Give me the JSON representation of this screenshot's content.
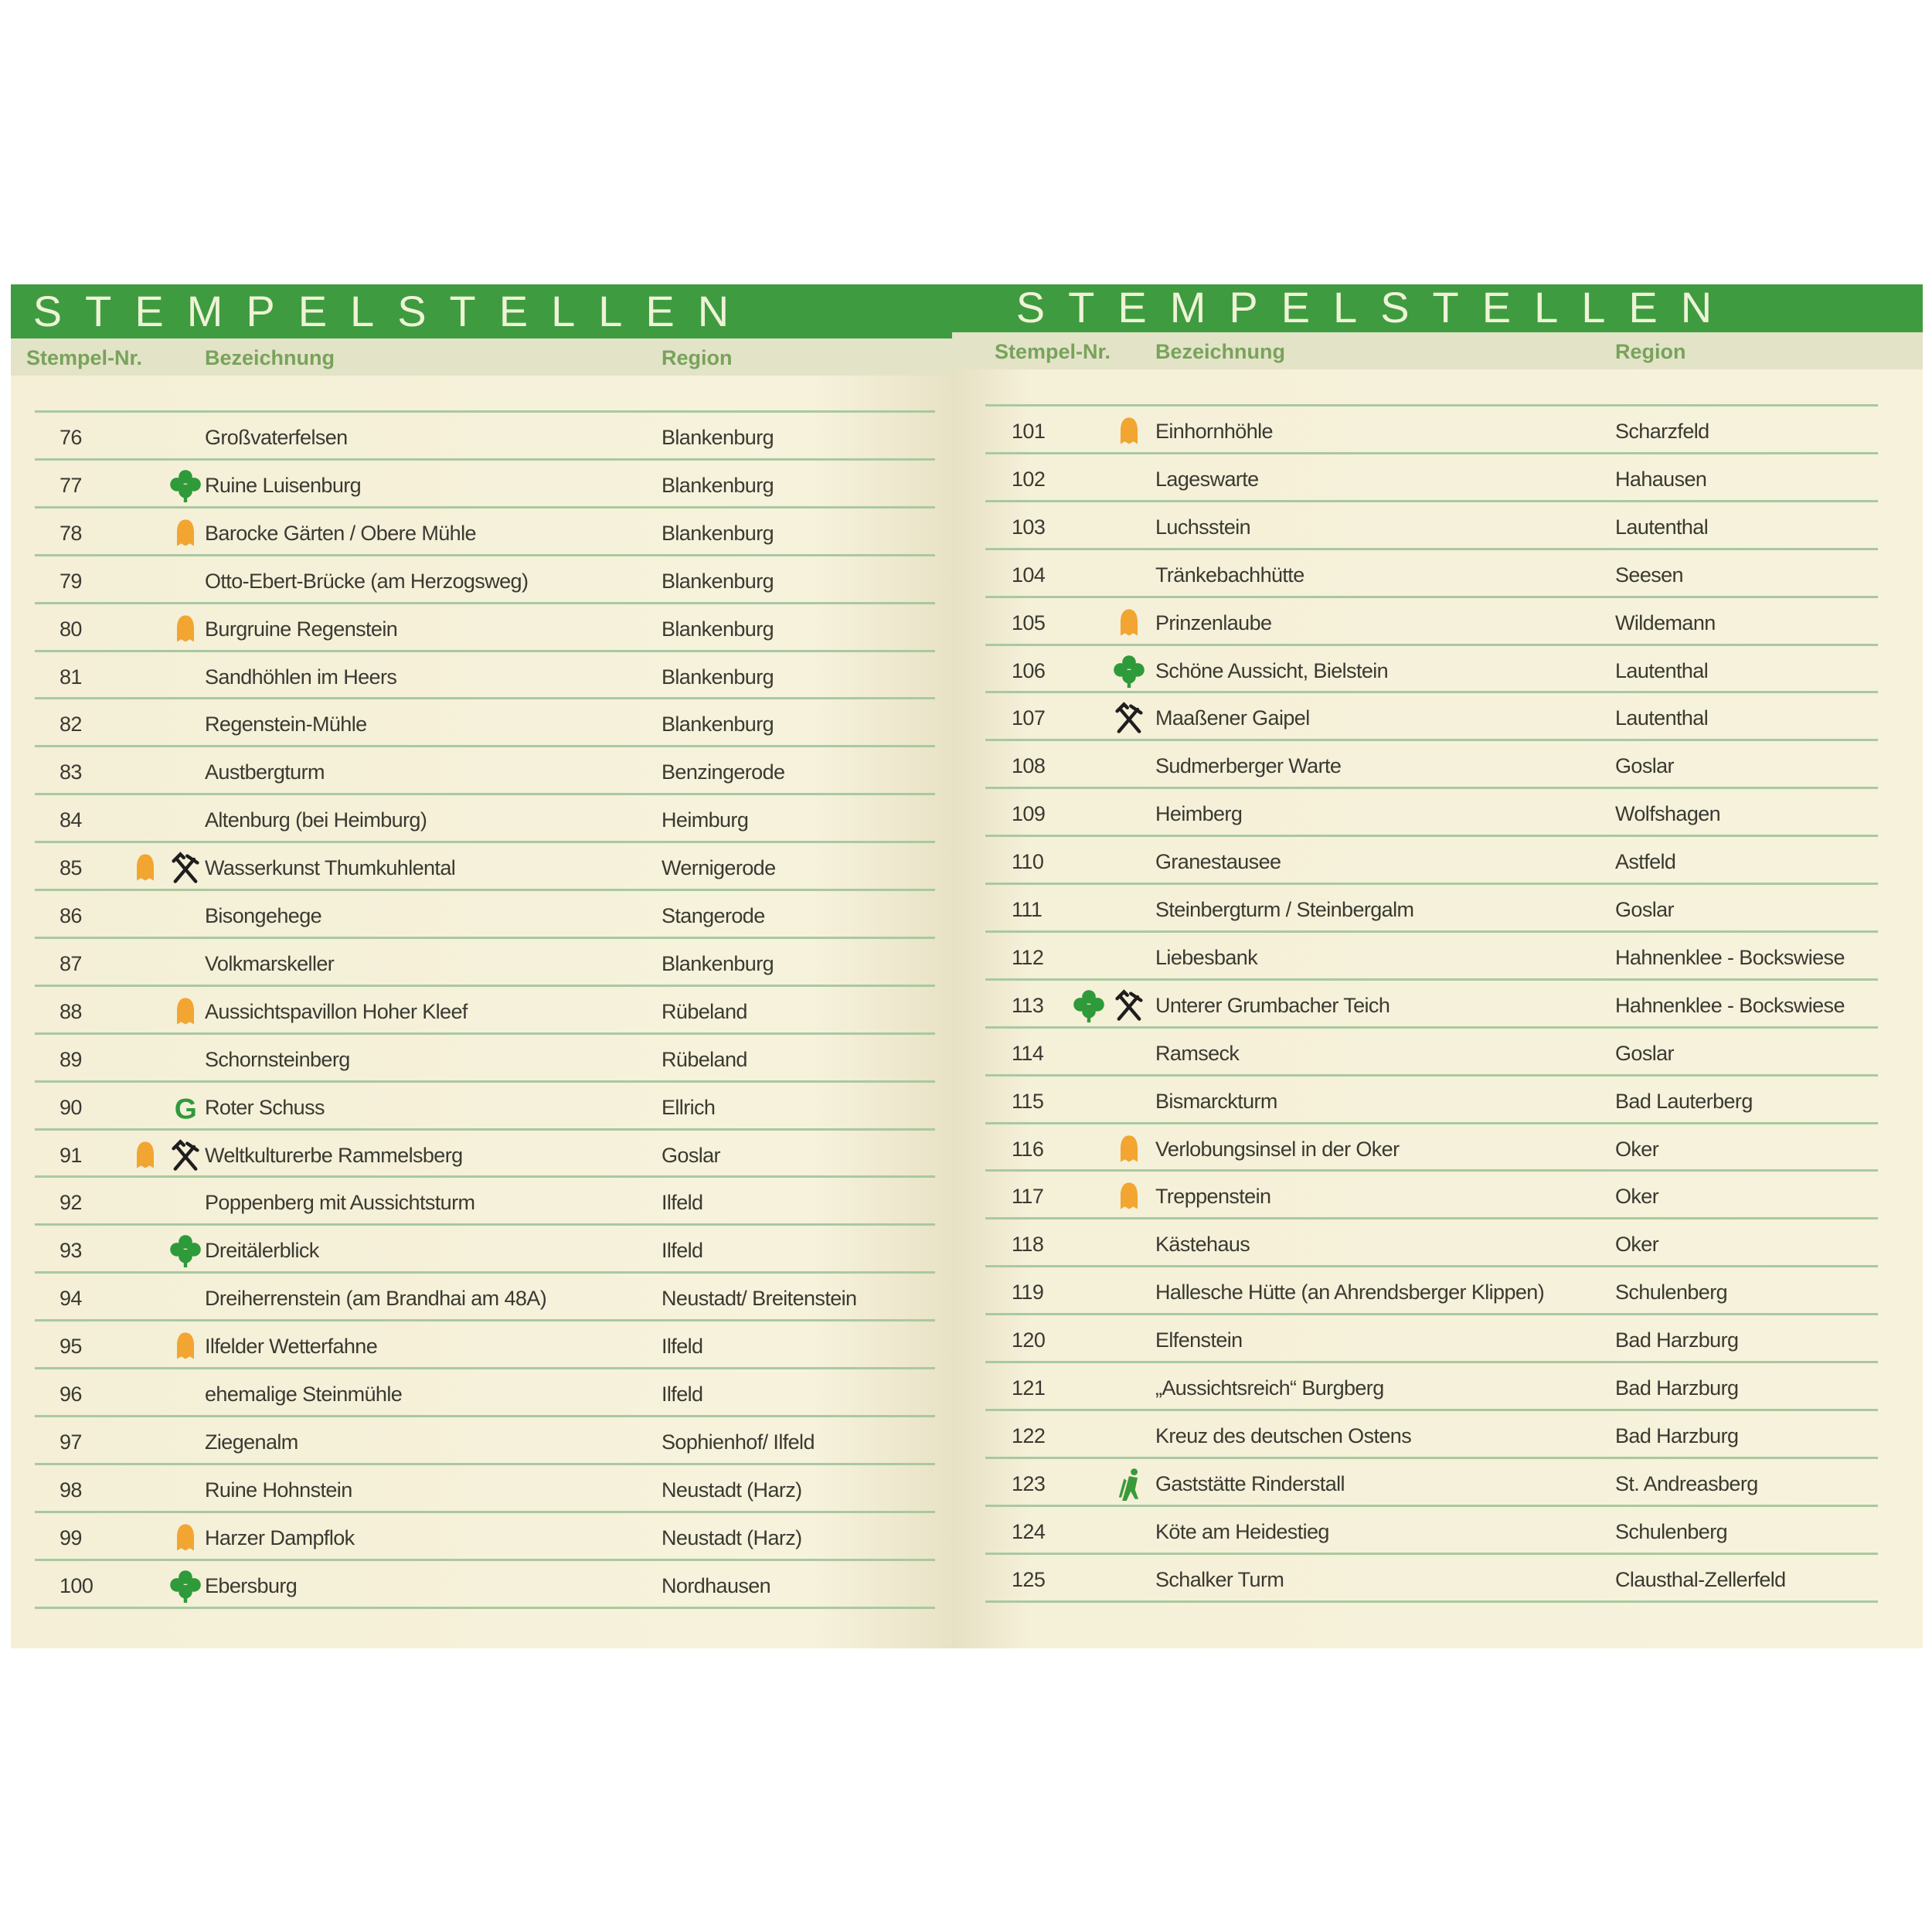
{
  "colors": {
    "band": "#3f9b3f",
    "clover": "#2e9a3a",
    "bell": "#f2a531",
    "miner": "#1e1e1e",
    "G": "#2e9a3a",
    "hiker": "#3a9a3a"
  },
  "left": {
    "title": "STEMPELSTELLEN",
    "headers": {
      "nr": "Stempel-Nr.",
      "name": "Bezeichnung",
      "region": "Region"
    },
    "rows": [
      {
        "nr": "76",
        "icons": [],
        "name": "Großvaterfelsen",
        "region": "Blankenburg"
      },
      {
        "nr": "77",
        "icons": [
          "clover"
        ],
        "name": "Ruine Luisenburg",
        "region": "Blankenburg"
      },
      {
        "nr": "78",
        "icons": [
          "bell"
        ],
        "name": "Barocke Gärten / Obere Mühle",
        "region": "Blankenburg"
      },
      {
        "nr": "79",
        "icons": [],
        "name": "Otto-Ebert-Brücke (am Herzogsweg)",
        "region": "Blankenburg"
      },
      {
        "nr": "80",
        "icons": [
          "bell"
        ],
        "name": "Burgruine Regenstein",
        "region": "Blankenburg"
      },
      {
        "nr": "81",
        "icons": [],
        "name": "Sandhöhlen im Heers",
        "region": "Blankenburg"
      },
      {
        "nr": "82",
        "icons": [],
        "name": "Regenstein-Mühle",
        "region": "Blankenburg"
      },
      {
        "nr": "83",
        "icons": [],
        "name": "Austbergturm",
        "region": "Benzingerode"
      },
      {
        "nr": "84",
        "icons": [],
        "name": "Altenburg (bei Heimburg)",
        "region": "Heimburg"
      },
      {
        "nr": "85",
        "icons": [
          "bell",
          "miner"
        ],
        "name": "Wasserkunst Thumkuhlental",
        "region": "Wernigerode"
      },
      {
        "nr": "86",
        "icons": [],
        "name": "Bisongehege",
        "region": "Stangerode"
      },
      {
        "nr": "87",
        "icons": [],
        "name": "Volkmarskeller",
        "region": "Blankenburg"
      },
      {
        "nr": "88",
        "icons": [
          "bell"
        ],
        "name": "Aussichtspavillon Hoher Kleef",
        "region": "Rübeland"
      },
      {
        "nr": "89",
        "icons": [],
        "name": "Schornsteinberg",
        "region": "Rübeland"
      },
      {
        "nr": "90",
        "icons": [
          "G"
        ],
        "name": "Roter Schuss",
        "region": "Ellrich"
      },
      {
        "nr": "91",
        "icons": [
          "bell",
          "miner"
        ],
        "name": "Weltkulturerbe Rammelsberg",
        "region": "Goslar"
      },
      {
        "nr": "92",
        "icons": [],
        "name": "Poppenberg mit Aussichtsturm",
        "region": "Ilfeld"
      },
      {
        "nr": "93",
        "icons": [
          "clover"
        ],
        "name": "Dreitälerblick",
        "region": "Ilfeld"
      },
      {
        "nr": "94",
        "icons": [],
        "name": "Dreiherrenstein (am Brandhai am 48A)",
        "region": "Neustadt/ Breitenstein"
      },
      {
        "nr": "95",
        "icons": [
          "bell"
        ],
        "name": "Ilfelder Wetterfahne",
        "region": "Ilfeld"
      },
      {
        "nr": "96",
        "icons": [],
        "name": "ehemalige Steinmühle",
        "region": "Ilfeld"
      },
      {
        "nr": "97",
        "icons": [],
        "name": "Ziegenalm",
        "region": "Sophienhof/ Ilfeld"
      },
      {
        "nr": "98",
        "icons": [],
        "name": "Ruine Hohnstein",
        "region": "Neustadt (Harz)"
      },
      {
        "nr": "99",
        "icons": [
          "bell"
        ],
        "name": "Harzer Dampflok",
        "region": "Neustadt (Harz)"
      },
      {
        "nr": "100",
        "icons": [
          "clover"
        ],
        "name": "Ebersburg",
        "region": "Nordhausen"
      }
    ]
  },
  "right": {
    "title": "STEMPELSTELLEN",
    "headers": {
      "nr": "Stempel-Nr.",
      "name": "Bezeichnung",
      "region": "Region"
    },
    "rows": [
      {
        "nr": "101",
        "icons": [
          "bell"
        ],
        "name": "Einhornhöhle",
        "region": "Scharzfeld"
      },
      {
        "nr": "102",
        "icons": [],
        "name": "Lageswarte",
        "region": "Hahausen"
      },
      {
        "nr": "103",
        "icons": [],
        "name": "Luchsstein",
        "region": "Lautenthal"
      },
      {
        "nr": "104",
        "icons": [],
        "name": "Tränkebachhütte",
        "region": "Seesen"
      },
      {
        "nr": "105",
        "icons": [
          "bell"
        ],
        "name": "Prinzenlaube",
        "region": "Wildemann"
      },
      {
        "nr": "106",
        "icons": [
          "clover"
        ],
        "name": "Schöne Aussicht, Bielstein",
        "region": "Lautenthal"
      },
      {
        "nr": "107",
        "icons": [
          "miner"
        ],
        "name": "Maaßener Gaipel",
        "region": "Lautenthal"
      },
      {
        "nr": "108",
        "icons": [],
        "name": "Sudmerberger Warte",
        "region": "Goslar"
      },
      {
        "nr": "109",
        "icons": [],
        "name": "Heimberg",
        "region": "Wolfshagen"
      },
      {
        "nr": "110",
        "icons": [],
        "name": "Granestausee",
        "region": "Astfeld"
      },
      {
        "nr": "111",
        "icons": [],
        "name": "Steinbergturm / Steinbergalm",
        "region": "Goslar"
      },
      {
        "nr": "112",
        "icons": [],
        "name": "Liebesbank",
        "region": "Hahnenklee - Bockswiese"
      },
      {
        "nr": "113",
        "icons": [
          "clover",
          "miner"
        ],
        "name": "Unterer Grumbacher Teich",
        "region": "Hahnenklee - Bockswiese"
      },
      {
        "nr": "114",
        "icons": [],
        "name": "Ramseck",
        "region": "Goslar"
      },
      {
        "nr": "115",
        "icons": [],
        "name": "Bismarckturm",
        "region": "Bad Lauterberg"
      },
      {
        "nr": "116",
        "icons": [
          "bell"
        ],
        "name": "Verlobungsinsel in der Oker",
        "region": "Oker"
      },
      {
        "nr": "117",
        "icons": [
          "bell"
        ],
        "name": "Treppenstein",
        "region": "Oker"
      },
      {
        "nr": "118",
        "icons": [],
        "name": "Kästehaus",
        "region": "Oker"
      },
      {
        "nr": "119",
        "icons": [],
        "name": "Hallesche Hütte (an Ahrendsberger Klippen)",
        "region": "Schulenberg"
      },
      {
        "nr": "120",
        "icons": [],
        "name": "Elfenstein",
        "region": "Bad Harzburg"
      },
      {
        "nr": "121",
        "icons": [],
        "name": "„Aussichtsreich“ Burgberg",
        "region": "Bad Harzburg"
      },
      {
        "nr": "122",
        "icons": [],
        "name": "Kreuz des deutschen Ostens",
        "region": "Bad Harzburg"
      },
      {
        "nr": "123",
        "icons": [
          "hiker"
        ],
        "name": "Gaststätte Rinderstall",
        "region": "St. Andreasberg"
      },
      {
        "nr": "124",
        "icons": [],
        "name": "Köte am Heidestieg",
        "region": "Schulenberg"
      },
      {
        "nr": "125",
        "icons": [],
        "name": "Schalker Turm",
        "region": "Clausthal-Zellerfeld"
      }
    ]
  }
}
